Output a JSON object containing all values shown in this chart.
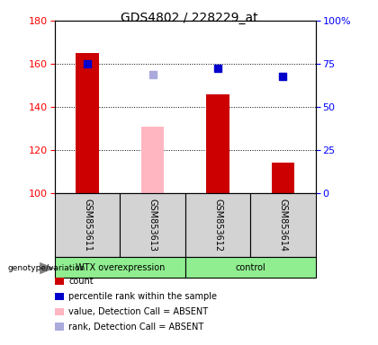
{
  "title": "GDS4802 / 228229_at",
  "samples": [
    "GSM853611",
    "GSM853613",
    "GSM853612",
    "GSM853614"
  ],
  "bar_bottom": 100,
  "ylim_left": [
    100,
    180
  ],
  "yticks_left": [
    100,
    120,
    140,
    160,
    180
  ],
  "yticks_right": [
    0,
    25,
    50,
    75,
    100
  ],
  "ytick_labels_right": [
    "0",
    "25",
    "50",
    "75",
    "100%"
  ],
  "count_values": [
    165,
    null,
    146,
    114
  ],
  "count_absent_values": [
    null,
    131,
    null,
    null
  ],
  "percentile_values": [
    160,
    null,
    158,
    154
  ],
  "rank_absent_values": [
    null,
    155,
    null,
    null
  ],
  "count_color": "#cc0000",
  "count_absent_color": "#ffb6c1",
  "percentile_color": "#0000cc",
  "rank_absent_color": "#aaaadd",
  "bar_width": 0.35,
  "marker_size": 6,
  "sample_area_color": "#d3d3d3",
  "green_color": "#90EE90",
  "legend_items": [
    {
      "label": "count",
      "color": "#cc0000"
    },
    {
      "label": "percentile rank within the sample",
      "color": "#0000cc"
    },
    {
      "label": "value, Detection Call = ABSENT",
      "color": "#ffb6c1"
    },
    {
      "label": "rank, Detection Call = ABSENT",
      "color": "#aaaadd"
    }
  ]
}
